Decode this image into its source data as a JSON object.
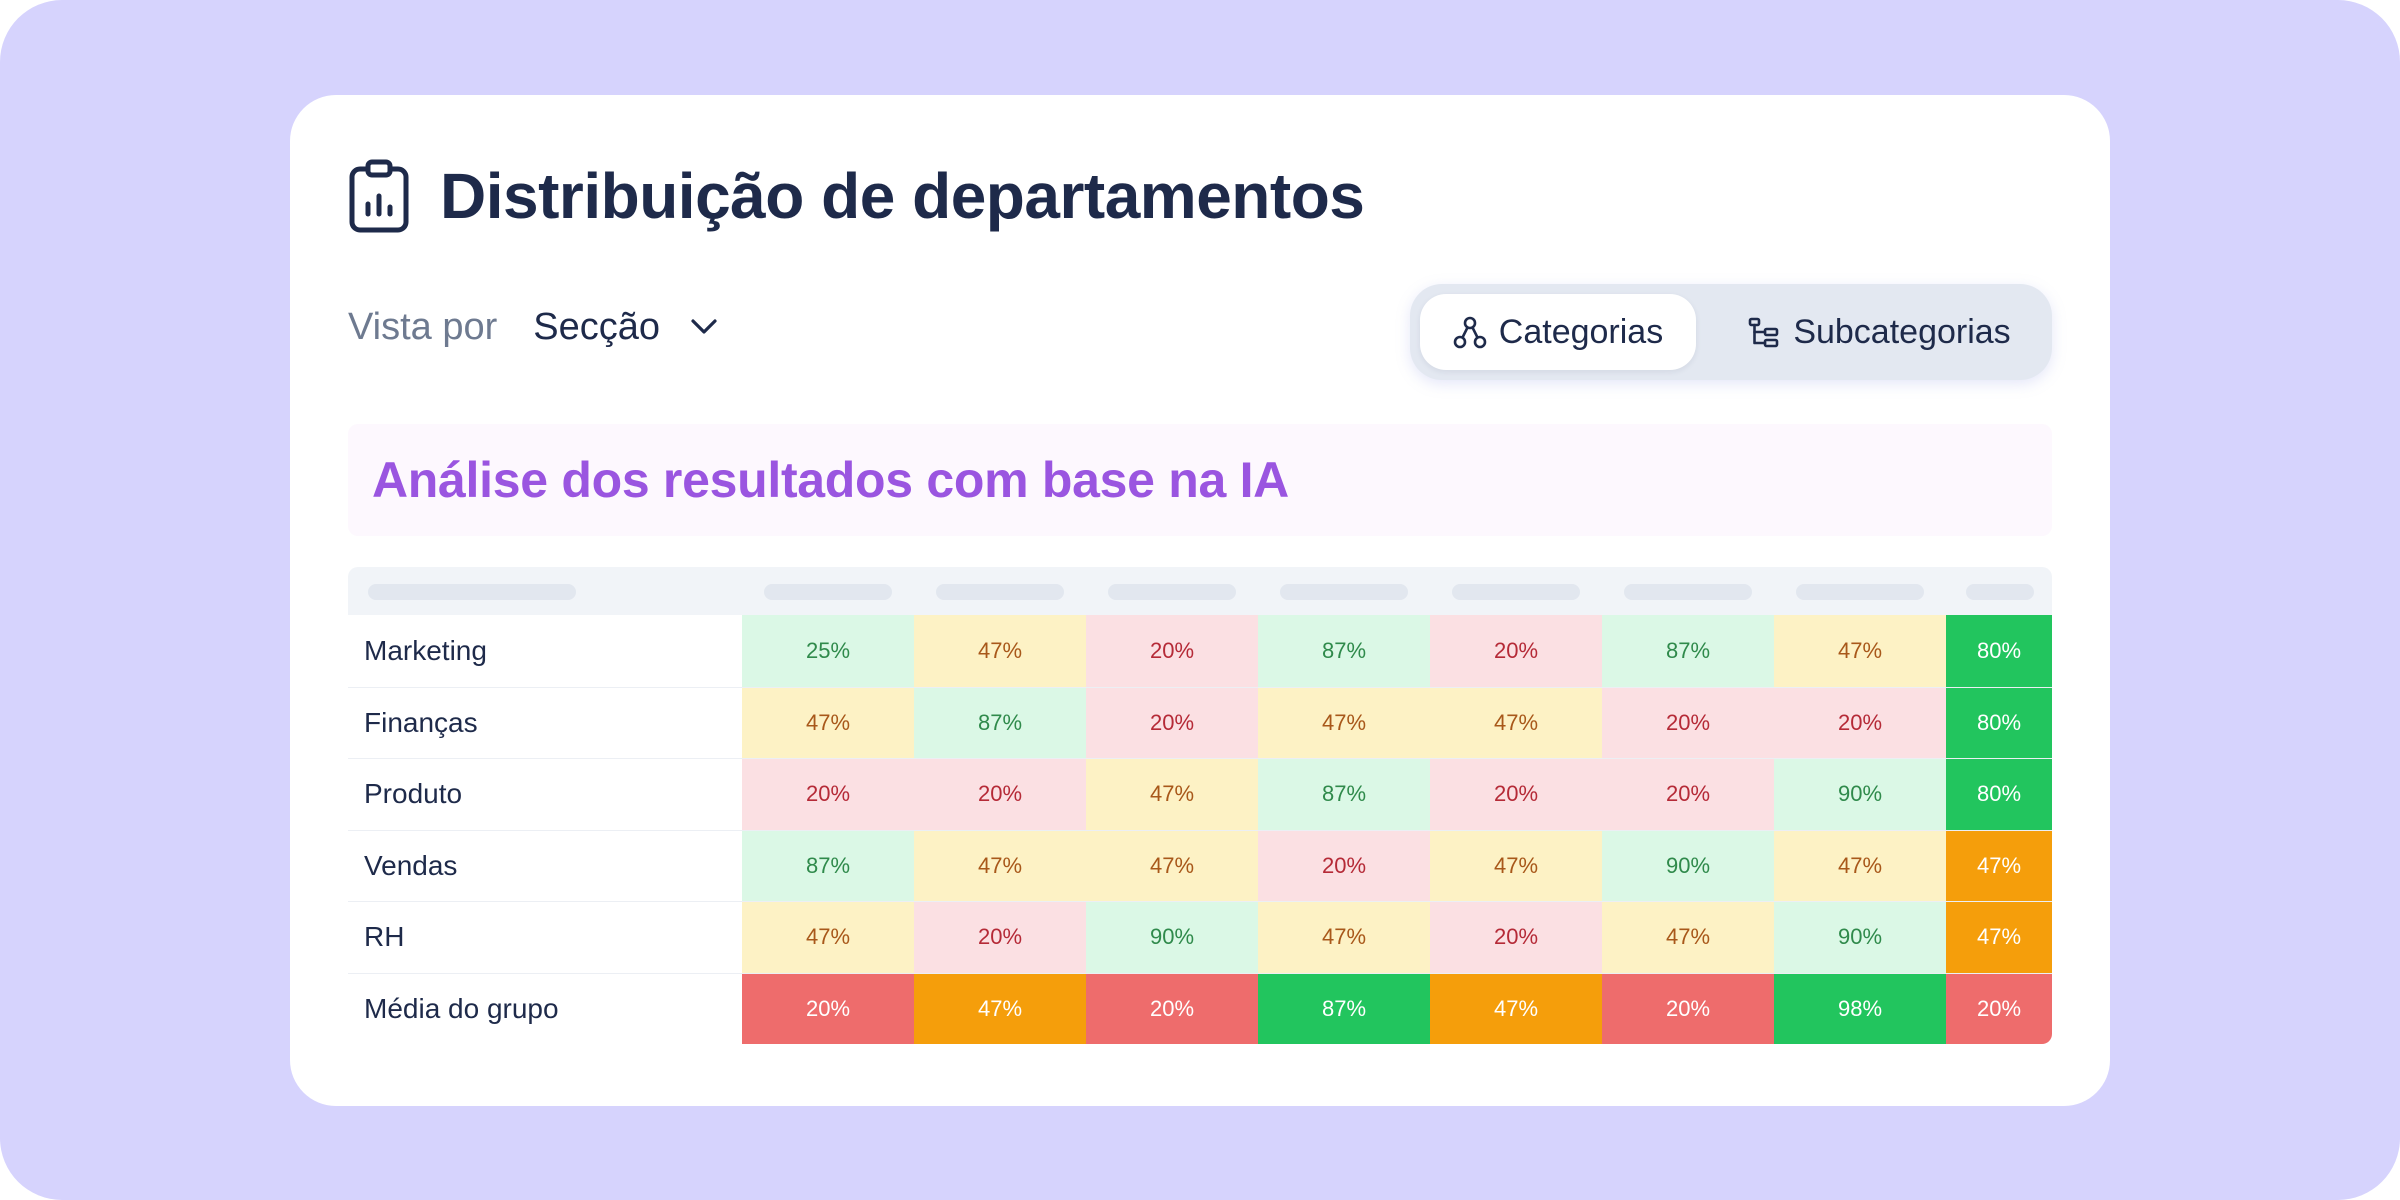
{
  "header": {
    "title": "Distribuição de departamentos",
    "icon": "clipboard-chart-icon"
  },
  "view_by": {
    "label": "Vista por",
    "value": "Secção",
    "icon": "chevron-down-icon"
  },
  "view_toggle": {
    "categories_label": "Categorias",
    "categories_icon": "hierarchy-icon",
    "subcategories_label": "Subcategorias",
    "subcategories_icon": "tree-list-icon",
    "selected": "Categorias"
  },
  "ai_banner": {
    "text": "Análise dos resultados com base na IA"
  },
  "colors": {
    "title": "#1e2a4a",
    "accent_ai": "#9a55e0",
    "backdrop": "#d6d3fd",
    "green_light_bg": "#dbf8e6",
    "green_light_text": "#2f8a4b",
    "amber_light_bg": "#fdf2c5",
    "amber_light_text": "#a8581a",
    "red_light_bg": "#fbe0e3",
    "red_light_text": "#b52a37",
    "green_strong": "#22c55e",
    "amber_strong": "#f59e0b",
    "red_strong": "#ee6c6c"
  },
  "table": {
    "rows": [
      {
        "label": "Marketing",
        "values": [
          "25%",
          "47%",
          "20%",
          "87%",
          "20%",
          "87%",
          "47%",
          "80%"
        ],
        "tones": [
          "green",
          "amber",
          "red",
          "green",
          "red",
          "green",
          "amber",
          "green-strong"
        ]
      },
      {
        "label": "Finanças",
        "values": [
          "47%",
          "87%",
          "20%",
          "47%",
          "47%",
          "20%",
          "20%",
          "80%"
        ],
        "tones": [
          "amber",
          "green",
          "red",
          "amber",
          "amber",
          "red",
          "red",
          "green-strong"
        ]
      },
      {
        "label": "Produto",
        "values": [
          "20%",
          "20%",
          "47%",
          "87%",
          "20%",
          "20%",
          "90%",
          "80%"
        ],
        "tones": [
          "red",
          "red",
          "amber",
          "green",
          "red",
          "red",
          "green",
          "green-strong"
        ]
      },
      {
        "label": "Vendas",
        "values": [
          "87%",
          "47%",
          "47%",
          "20%",
          "47%",
          "90%",
          "47%",
          "47%"
        ],
        "tones": [
          "green",
          "amber",
          "amber",
          "red",
          "amber",
          "green",
          "amber",
          "amber-strong"
        ]
      },
      {
        "label": "RH",
        "values": [
          "47%",
          "20%",
          "90%",
          "47%",
          "20%",
          "47%",
          "90%",
          "47%"
        ],
        "tones": [
          "amber",
          "red",
          "green",
          "amber",
          "red",
          "amber",
          "green",
          "amber-strong"
        ]
      },
      {
        "label": "Média do grupo",
        "values": [
          "20%",
          "47%",
          "20%",
          "87%",
          "47%",
          "20%",
          "98%",
          "20%"
        ],
        "tones": [
          "red-strong",
          "amber-strong",
          "red-strong",
          "green-strong",
          "amber-strong",
          "red-strong",
          "green-strong",
          "red-strong"
        ]
      }
    ]
  }
}
